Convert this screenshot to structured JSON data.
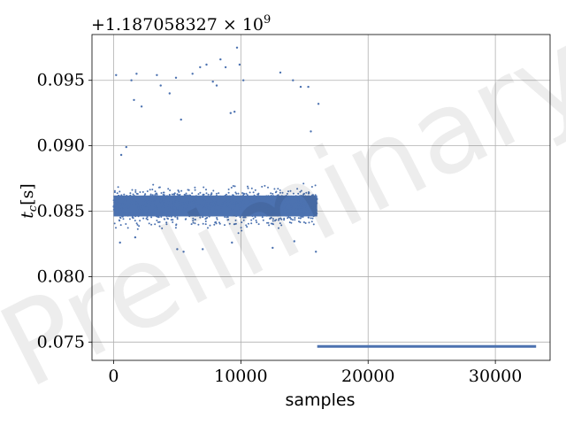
{
  "chart_data": {
    "type": "scatter",
    "title": "",
    "xlabel": "samples",
    "ylabel": "t_c [s]",
    "ylabel_main": "t",
    "ylabel_sub": "c",
    "ylabel_unit": "[s]",
    "y_offset_label": "+1.187058327 × 10",
    "y_offset_exponent": "9",
    "watermark": "Preliminary",
    "xlim": [
      -1700,
      34300
    ],
    "ylim": [
      0.0736,
      0.0985
    ],
    "grid": true,
    "marker_color": "#4c72b0",
    "x_ticks": [
      {
        "value": 0,
        "label": "0"
      },
      {
        "value": 10000,
        "label": "10000"
      },
      {
        "value": 20000,
        "label": "20000"
      },
      {
        "value": 30000,
        "label": "30000"
      }
    ],
    "y_ticks": [
      {
        "value": 0.075,
        "label": "0.075"
      },
      {
        "value": 0.08,
        "label": "0.080"
      },
      {
        "value": 0.085,
        "label": "0.085"
      },
      {
        "value": 0.09,
        "label": "0.090"
      },
      {
        "value": 0.095,
        "label": "0.095"
      }
    ],
    "series": [
      {
        "style": "scatter",
        "description_cluster": {
          "x_range": [
            0,
            16000
          ],
          "y_mean": 0.0854,
          "y_core_halfwidth": 0.0008,
          "y_spread_halfwidth": 0.0022
        },
        "outliers": [
          [
            200,
            0.0954
          ],
          [
            600,
            0.0893
          ],
          [
            1000,
            0.0899
          ],
          [
            1400,
            0.095
          ],
          [
            1600,
            0.0935
          ],
          [
            1800,
            0.0955
          ],
          [
            2200,
            0.093
          ],
          [
            3400,
            0.0954
          ],
          [
            3700,
            0.0946
          ],
          [
            4400,
            0.094
          ],
          [
            4900,
            0.0952
          ],
          [
            5300,
            0.092
          ],
          [
            6200,
            0.0955
          ],
          [
            6800,
            0.096
          ],
          [
            7300,
            0.0962
          ],
          [
            7800,
            0.0949
          ],
          [
            8100,
            0.0946
          ],
          [
            8400,
            0.0966
          ],
          [
            8800,
            0.096
          ],
          [
            9200,
            0.0925
          ],
          [
            9500,
            0.0926
          ],
          [
            9700,
            0.0975
          ],
          [
            9900,
            0.0962
          ],
          [
            10200,
            0.095
          ],
          [
            13100,
            0.0956
          ],
          [
            14100,
            0.095
          ],
          [
            14700,
            0.0945
          ],
          [
            15300,
            0.0945
          ],
          [
            15500,
            0.0911
          ],
          [
            16100,
            0.0932
          ],
          [
            500,
            0.0826
          ],
          [
            1700,
            0.083
          ],
          [
            5000,
            0.0821
          ],
          [
            5500,
            0.0819
          ],
          [
            7000,
            0.0821
          ],
          [
            9300,
            0.0826
          ],
          [
            12500,
            0.0822
          ],
          [
            14200,
            0.0827
          ],
          [
            15900,
            0.0819
          ]
        ]
      },
      {
        "style": "line",
        "x": [
          16000,
          33200
        ],
        "y": [
          0.07466,
          0.07466
        ]
      }
    ]
  }
}
